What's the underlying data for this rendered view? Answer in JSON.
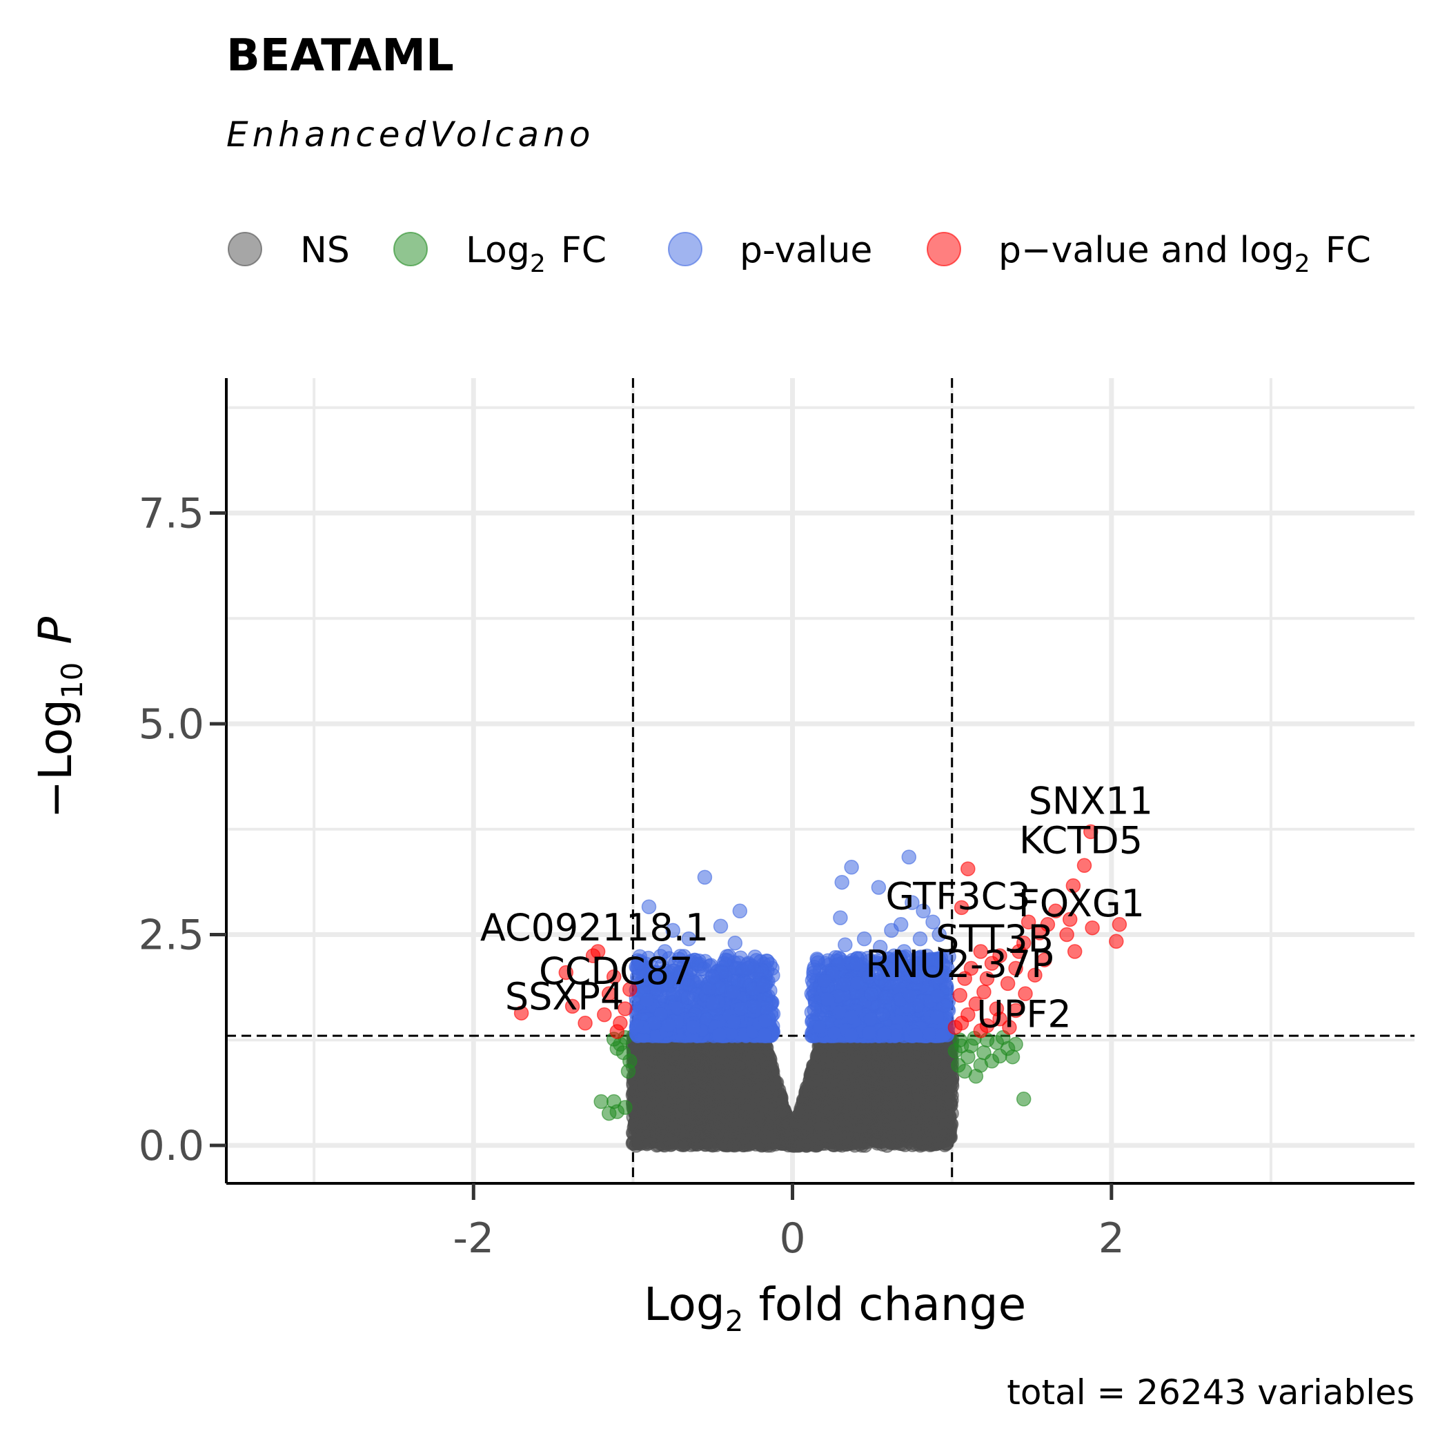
{
  "chart_data": {
    "type": "scatter",
    "title": "BEATAML",
    "subtitle": "EnhancedVolcano",
    "caption": "total = 26243 variables",
    "xlabel": {
      "main": "Log",
      "sub": "2",
      "rest": "fold change"
    },
    "ylabel": {
      "pre": "−Log",
      "sub": "10",
      "italic": "P"
    },
    "xlim": [
      -3.55,
      3.9
    ],
    "ylim": [
      -0.45,
      9.1
    ],
    "x_ticks": [
      -2,
      0,
      2
    ],
    "x_tick_labels": [
      "-2",
      "0",
      "2"
    ],
    "y_ticks": [
      0,
      2.5,
      5,
      7.5
    ],
    "y_tick_labels": [
      "0.0",
      "2.5",
      "5.0",
      "7.5"
    ],
    "fc_cutoff": 1,
    "p_cutoff_log10": 1.3,
    "grid": true,
    "legend_position": "top",
    "legend": [
      {
        "key": "ns",
        "label": "NS",
        "color": "#4d4d4d"
      },
      {
        "key": "fc",
        "label": "Log",
        "label_sub": "2",
        "label_rest": "FC",
        "color": "#228b22"
      },
      {
        "key": "p",
        "label": "p-value",
        "color": "#4169e1"
      },
      {
        "key": "pfc",
        "label": "p−value  and  log",
        "label_sub": "2",
        "label_rest": "FC",
        "color": "#ff0000"
      }
    ],
    "labeled_genes": [
      {
        "gene": "SNX11",
        "x": 1.87,
        "y": 3.72
      },
      {
        "gene": "KCTD5",
        "x": 1.83,
        "y": 3.32
      },
      {
        "gene": "FOXG1",
        "x": 2.05,
        "y": 2.62
      },
      {
        "gene": "GTF3C3",
        "x": 1.06,
        "y": 2.82
      },
      {
        "gene": "STT3B",
        "x": 1.18,
        "y": 2.3
      },
      {
        "gene": "RNU2-37P",
        "x": 1.22,
        "y": 1.98
      },
      {
        "gene": "UPF2",
        "x": 1.3,
        "y": 1.5
      },
      {
        "gene": "AC092118.1",
        "x": -1.22,
        "y": 2.3
      },
      {
        "gene": "CCDC87",
        "x": -1.15,
        "y": 1.8
      },
      {
        "gene": "SSXP4",
        "x": -1.3,
        "y": 1.45
      }
    ],
    "series": [
      {
        "name": "p-value and log2 FC",
        "color": "#ff0000",
        "points": [
          [
            1.87,
            3.72
          ],
          [
            1.83,
            3.32
          ],
          [
            1.76,
            3.08
          ],
          [
            2.05,
            2.62
          ],
          [
            1.06,
            2.82
          ],
          [
            1.18,
            2.3
          ],
          [
            1.22,
            1.98
          ],
          [
            1.3,
            1.5
          ],
          [
            1.1,
            3.28
          ],
          [
            1.65,
            2.78
          ],
          [
            1.74,
            2.68
          ],
          [
            1.6,
            2.62
          ],
          [
            1.55,
            2.52
          ],
          [
            1.72,
            2.5
          ],
          [
            1.88,
            2.58
          ],
          [
            2.03,
            2.42
          ],
          [
            1.77,
            2.3
          ],
          [
            1.45,
            2.4
          ],
          [
            1.3,
            2.25
          ],
          [
            1.4,
            2.1
          ],
          [
            1.52,
            2.02
          ],
          [
            1.25,
            2.16
          ],
          [
            1.12,
            2.1
          ],
          [
            1.08,
            1.98
          ],
          [
            1.35,
            1.92
          ],
          [
            1.46,
            1.8
          ],
          [
            1.2,
            1.82
          ],
          [
            1.05,
            1.78
          ],
          [
            1.15,
            1.68
          ],
          [
            1.28,
            1.62
          ],
          [
            1.4,
            1.6
          ],
          [
            1.1,
            1.55
          ],
          [
            1.22,
            1.42
          ],
          [
            1.36,
            1.4
          ],
          [
            1.06,
            1.45
          ],
          [
            1.18,
            1.36
          ],
          [
            1.02,
            1.4
          ],
          [
            1.48,
            2.65
          ],
          [
            1.42,
            2.3
          ],
          [
            1.58,
            2.2
          ],
          [
            -1.22,
            2.3
          ],
          [
            -1.15,
            1.8
          ],
          [
            -1.3,
            1.45
          ],
          [
            -1.7,
            1.57
          ],
          [
            -1.42,
            2.05
          ],
          [
            -1.38,
            1.65
          ],
          [
            -1.12,
            2.0
          ],
          [
            -1.05,
            1.62
          ],
          [
            -1.08,
            1.45
          ],
          [
            -1.18,
            1.55
          ],
          [
            -1.25,
            2.25
          ],
          [
            -1.02,
            1.85
          ],
          [
            -1.1,
            1.35
          ]
        ]
      },
      {
        "name": "Log2 FC",
        "color": "#228b22",
        "points": [
          [
            1.45,
            0.55
          ],
          [
            1.05,
            1.25
          ],
          [
            1.12,
            1.18
          ],
          [
            1.2,
            1.1
          ],
          [
            1.28,
            1.22
          ],
          [
            1.35,
            1.15
          ],
          [
            1.1,
            1.05
          ],
          [
            1.18,
            0.95
          ],
          [
            1.02,
            1.12
          ],
          [
            1.08,
            0.88
          ],
          [
            1.25,
            1.0
          ],
          [
            1.15,
            0.82
          ],
          [
            1.32,
            1.28
          ],
          [
            1.4,
            1.2
          ],
          [
            1.04,
            0.95
          ],
          [
            1.22,
            1.25
          ],
          [
            1.14,
            1.27
          ],
          [
            1.3,
            1.06
          ],
          [
            1.06,
            1.18
          ],
          [
            1.38,
            1.05
          ],
          [
            -1.2,
            0.52
          ],
          [
            -1.12,
            0.52
          ],
          [
            -1.1,
            0.4
          ],
          [
            -1.05,
            0.45
          ],
          [
            -1.15,
            0.38
          ],
          [
            -1.08,
            1.2
          ],
          [
            -1.02,
            1.0
          ],
          [
            -1.05,
            1.28
          ],
          [
            -1.1,
            1.15
          ],
          [
            -1.03,
            0.88
          ],
          [
            -1.12,
            1.26
          ],
          [
            -1.06,
            1.1
          ]
        ]
      },
      {
        "name": "p-value",
        "color": "#4169e1",
        "density": {
          "count": 2000,
          "x_range": [
            -0.98,
            0.98
          ],
          "y_range": [
            1.3,
            2.25
          ],
          "gap": 0.12
        },
        "points": [
          [
            -0.55,
            3.18
          ],
          [
            -0.9,
            2.83
          ],
          [
            -0.75,
            2.55
          ],
          [
            -0.45,
            2.6
          ],
          [
            -0.33,
            2.78
          ],
          [
            -0.65,
            2.45
          ],
          [
            -0.36,
            2.4
          ],
          [
            -0.8,
            2.3
          ],
          [
            -0.6,
            2.15
          ],
          [
            -0.42,
            2.2
          ],
          [
            -0.85,
            2.05
          ],
          [
            -0.5,
            2.0
          ],
          [
            -0.28,
            2.1
          ],
          [
            -0.7,
            2.05
          ],
          [
            0.73,
            3.42
          ],
          [
            0.37,
            3.3
          ],
          [
            0.31,
            3.12
          ],
          [
            0.54,
            3.06
          ],
          [
            0.75,
            2.88
          ],
          [
            0.3,
            2.7
          ],
          [
            0.88,
            2.65
          ],
          [
            0.62,
            2.55
          ],
          [
            0.45,
            2.45
          ],
          [
            0.8,
            2.45
          ],
          [
            0.92,
            2.5
          ],
          [
            0.55,
            2.35
          ],
          [
            0.7,
            2.3
          ],
          [
            0.33,
            2.38
          ],
          [
            0.4,
            2.15
          ],
          [
            0.85,
            2.2
          ],
          [
            0.6,
            2.1
          ],
          [
            0.95,
            2.05
          ],
          [
            0.25,
            2.05
          ],
          [
            0.48,
            2.0
          ],
          [
            0.78,
            2.0
          ],
          [
            0.2,
            1.95
          ],
          [
            0.68,
            2.62
          ],
          [
            0.82,
            2.78
          ]
        ]
      },
      {
        "name": "NS",
        "color": "#4d4d4d",
        "density": {
          "count": 5500,
          "x_range": [
            -1.0,
            1.0
          ],
          "y_range": [
            0.0,
            1.3
          ]
        },
        "points": [
          [
            -0.82,
            0.28
          ],
          [
            -0.9,
            0.47
          ],
          [
            -0.7,
            0.5
          ],
          [
            -0.95,
            0.65
          ],
          [
            0.8,
            0.5
          ],
          [
            0.85,
            0.45
          ],
          [
            0.66,
            0.35
          ],
          [
            0.95,
            0.72
          ],
          [
            0.75,
            0.65
          ],
          [
            -0.6,
            0.45
          ],
          [
            -0.78,
            0.6
          ]
        ]
      }
    ]
  }
}
